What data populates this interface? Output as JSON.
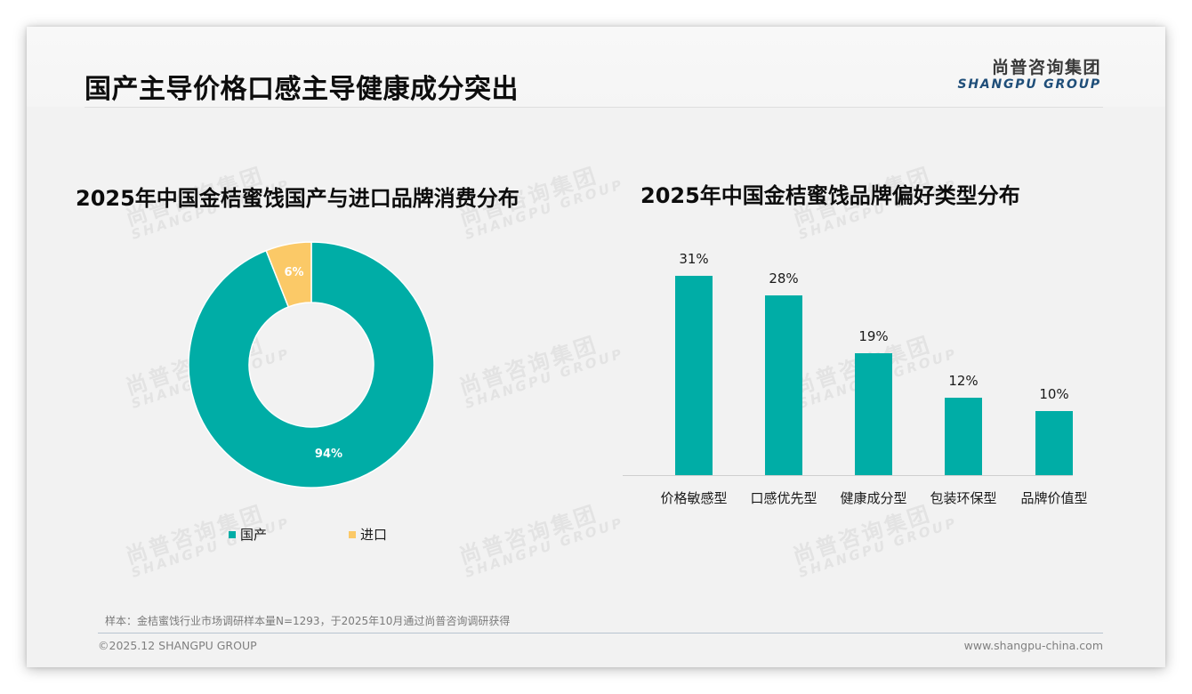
{
  "page": {
    "title": "国产主导价格口感主导健康成分突出",
    "logo": {
      "cn": "尚普咨询集团",
      "en": "SHANGPU GROUP"
    },
    "watermark": {
      "cn": "尚普咨询集团",
      "en": "SHANGPU GROUP"
    },
    "note": "样本：金桔蜜饯行业市场调研样本量N=1293，于2025年10月通过尚普咨询调研获得",
    "copyright": "©2025.12 SHANGPU GROUP",
    "website": "www.shangpu-china.com"
  },
  "colors": {
    "teal": "#00ada6",
    "yellow": "#fbc967",
    "title": "#0d0d0d",
    "logo_en": "#1f4e79"
  },
  "chart_data": [
    {
      "type": "pie",
      "variant": "donut",
      "title": "2025年中国金桔蜜饯国产与进口品牌消费分布",
      "categories": [
        "国产",
        "进口"
      ],
      "values": [
        94,
        6
      ],
      "labels": [
        "94%",
        "6%"
      ],
      "colors": [
        "#00ada6",
        "#fbc967"
      ],
      "legend_position": "bottom"
    },
    {
      "type": "bar",
      "title": "2025年中国金桔蜜饯品牌偏好类型分布",
      "categories": [
        "价格敏感型",
        "口感优先型",
        "健康成分型",
        "包装环保型",
        "品牌价值型"
      ],
      "values": [
        31,
        28,
        19,
        12,
        10
      ],
      "labels": [
        "31%",
        "28%",
        "19%",
        "12%",
        "10%"
      ],
      "xlabel": "",
      "ylabel": "",
      "grid": false,
      "color": "#00ada6"
    }
  ]
}
